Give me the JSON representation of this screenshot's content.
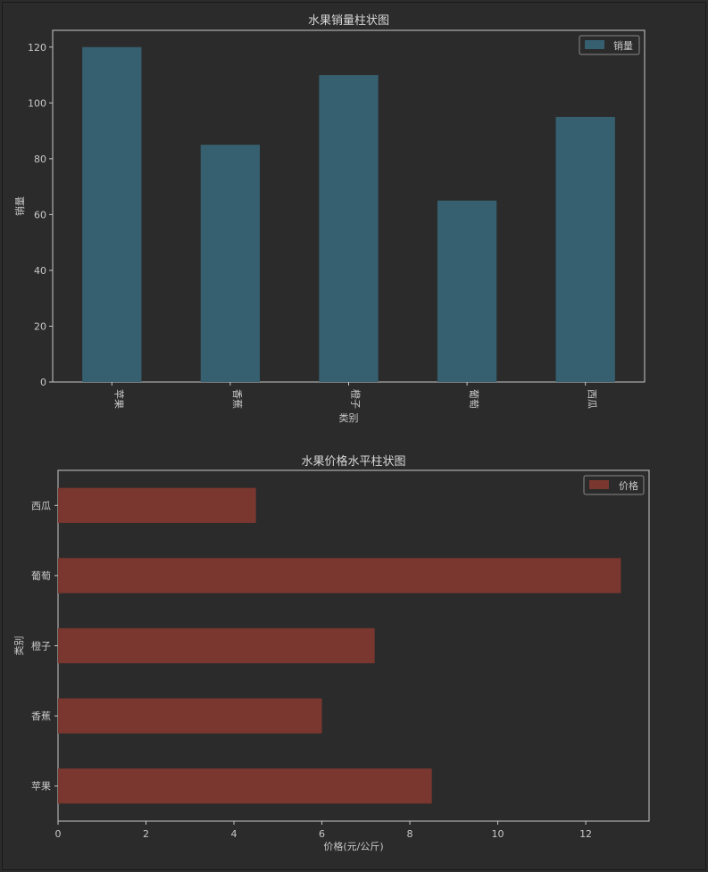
{
  "colors": {
    "background": "#2b2b2b",
    "axes_frame": "#c8c8c8",
    "bar_sales": "#365f6f",
    "bar_price": "#7a372f",
    "text": "#c8c8c8"
  },
  "chart_data": [
    {
      "type": "bar",
      "orientation": "vertical",
      "title": "水果销量柱状图",
      "xlabel": "类别",
      "ylabel": "销量",
      "categories": [
        "苹果",
        "香蕉",
        "橙子",
        "葡萄",
        "西瓜"
      ],
      "series": [
        {
          "name": "销量",
          "values": [
            120,
            85,
            110,
            65,
            95
          ]
        }
      ],
      "ylim": [
        0,
        126
      ],
      "yticks": [
        0,
        20,
        40,
        60,
        80,
        100,
        120
      ],
      "xtick_rotation": 90,
      "legend": {
        "position": "upper-right",
        "labels": [
          "销量"
        ]
      },
      "grid": false
    },
    {
      "type": "bar",
      "orientation": "horizontal",
      "title": "水果价格水平柱状图",
      "xlabel": "价格(元/公斤)",
      "ylabel": "类别",
      "categories": [
        "苹果",
        "香蕉",
        "橙子",
        "葡萄",
        "西瓜"
      ],
      "series": [
        {
          "name": "价格",
          "values": [
            8.5,
            6.0,
            7.2,
            12.8,
            4.5
          ]
        }
      ],
      "xlim": [
        0,
        13.44
      ],
      "xticks": [
        0,
        2,
        4,
        6,
        8,
        10,
        12
      ],
      "legend": {
        "position": "upper-right",
        "labels": [
          "价格"
        ]
      },
      "grid": false
    }
  ]
}
